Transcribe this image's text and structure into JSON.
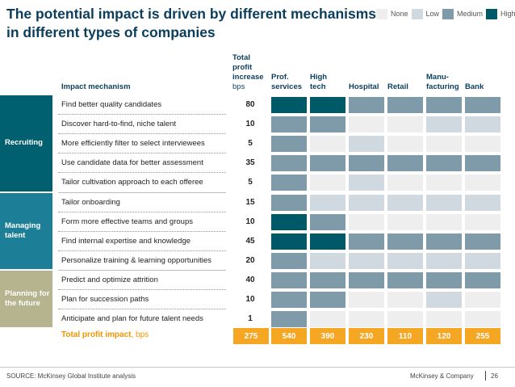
{
  "title": "The potential impact is driven by different mechanisms in different types of companies",
  "legend": [
    {
      "label": "None",
      "color": "#eeeeee"
    },
    {
      "label": "Low",
      "color": "#cfd9df"
    },
    {
      "label": "Medium",
      "color": "#7f9ba9"
    },
    {
      "label": "High",
      "color": "#005966"
    }
  ],
  "headers": {
    "mechanism": "Impact mechanism",
    "total_line1": "Total",
    "total_line2": "profit",
    "total_line3": "increase",
    "total_unit": "bps",
    "columns": [
      {
        "line1": "",
        "line2": "Prof.",
        "line3": "services"
      },
      {
        "line1": "",
        "line2": "High",
        "line3": "tech"
      },
      {
        "line1": "",
        "line2": "",
        "line3": "Hospital"
      },
      {
        "line1": "",
        "line2": "",
        "line3": "Retail"
      },
      {
        "line1": "",
        "line2": "Manu-",
        "line3": "facturing"
      },
      {
        "line1": "",
        "line2": "",
        "line3": "Bank"
      }
    ]
  },
  "groups": [
    {
      "label": "Recruiting",
      "color": "#00606f"
    },
    {
      "label": "Managing talent",
      "color": "#1d7f97"
    },
    {
      "label": "Planning for the future",
      "color": "#b5b48e"
    }
  ],
  "rows": [
    {
      "label": "Find better quality candidates",
      "value": "80",
      "levels": [
        3,
        3,
        2,
        2,
        2,
        2
      ]
    },
    {
      "label": "Discover hard-to-find, niche talent",
      "value": "10",
      "levels": [
        2,
        2,
        0,
        0,
        1,
        1
      ]
    },
    {
      "label": "More efficiently filter to select interviewees",
      "value": "5",
      "levels": [
        2,
        0,
        1,
        0,
        0,
        0
      ]
    },
    {
      "label": "Use candidate data for better assessment",
      "value": "35",
      "levels": [
        2,
        2,
        2,
        2,
        2,
        2
      ]
    },
    {
      "label": "Tailor cultivation approach to each offeree",
      "value": "5",
      "levels": [
        2,
        0,
        1,
        0,
        0,
        0
      ]
    },
    {
      "label": "Tailor onboarding",
      "value": "15",
      "levels": [
        2,
        1,
        1,
        1,
        1,
        1
      ]
    },
    {
      "label": "Form more effective teams and groups",
      "value": "10",
      "levels": [
        3,
        2,
        0,
        0,
        0,
        0
      ]
    },
    {
      "label": "Find internal expertise and knowledge",
      "value": "45",
      "levels": [
        3,
        3,
        2,
        2,
        2,
        2
      ]
    },
    {
      "label": "Personalize training & learning opportunities",
      "value": "20",
      "levels": [
        2,
        1,
        1,
        1,
        1,
        1
      ]
    },
    {
      "label": "Predict and optimize attrition",
      "value": "40",
      "levels": [
        2,
        2,
        2,
        2,
        2,
        2
      ]
    },
    {
      "label": "Plan for succession paths",
      "value": "10",
      "levels": [
        2,
        2,
        0,
        0,
        1,
        0
      ]
    },
    {
      "label": "Anticipate and plan for future talent needs",
      "value": "1",
      "levels": [
        2,
        0,
        0,
        0,
        0,
        0
      ]
    }
  ],
  "total": {
    "label": "Total profit impact",
    "unit": ", bps",
    "overall": "275",
    "columns": [
      "540",
      "390",
      "230",
      "110",
      "120",
      "255"
    ]
  },
  "footer": {
    "source": "SOURCE: McKinsey Global Institute analysis",
    "brand": "McKinsey & Company",
    "page": "26"
  }
}
